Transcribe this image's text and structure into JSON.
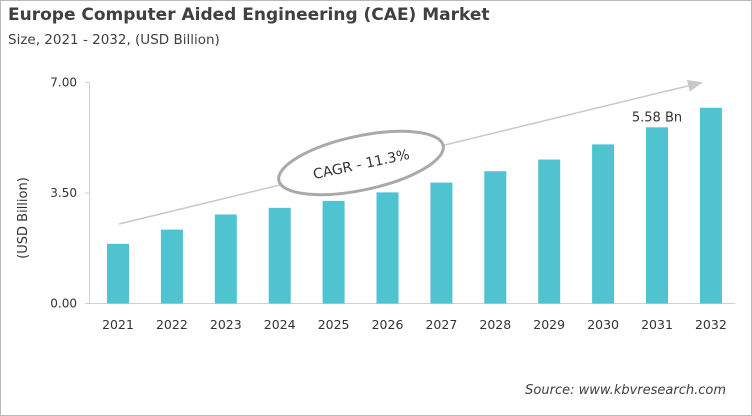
{
  "chart_data": {
    "type": "bar",
    "title": "Europe Computer Aided Engineering (CAE) Market",
    "subtitle": "Size, 2021 - 2032, (USD Billion)",
    "xlabel": "",
    "ylabel": "(USD Billion)",
    "categories": [
      "2021",
      "2022",
      "2023",
      "2024",
      "2025",
      "2026",
      "2027",
      "2028",
      "2029",
      "2030",
      "2031",
      "2032"
    ],
    "values": [
      1.89,
      2.34,
      2.82,
      3.03,
      3.25,
      3.52,
      3.83,
      4.19,
      4.56,
      5.04,
      5.58,
      6.2
    ],
    "ylim": [
      0,
      7
    ],
    "yticks": [
      "0.00",
      "3.50",
      "7.00"
    ],
    "grid": false,
    "bar_color": "#4fc3cf",
    "annotations": {
      "data_label": "5.58 Bn",
      "data_label_category": "2031",
      "cagr": "CAGR - 11.3%"
    },
    "source": "Source: www.kbvresearch.com"
  }
}
